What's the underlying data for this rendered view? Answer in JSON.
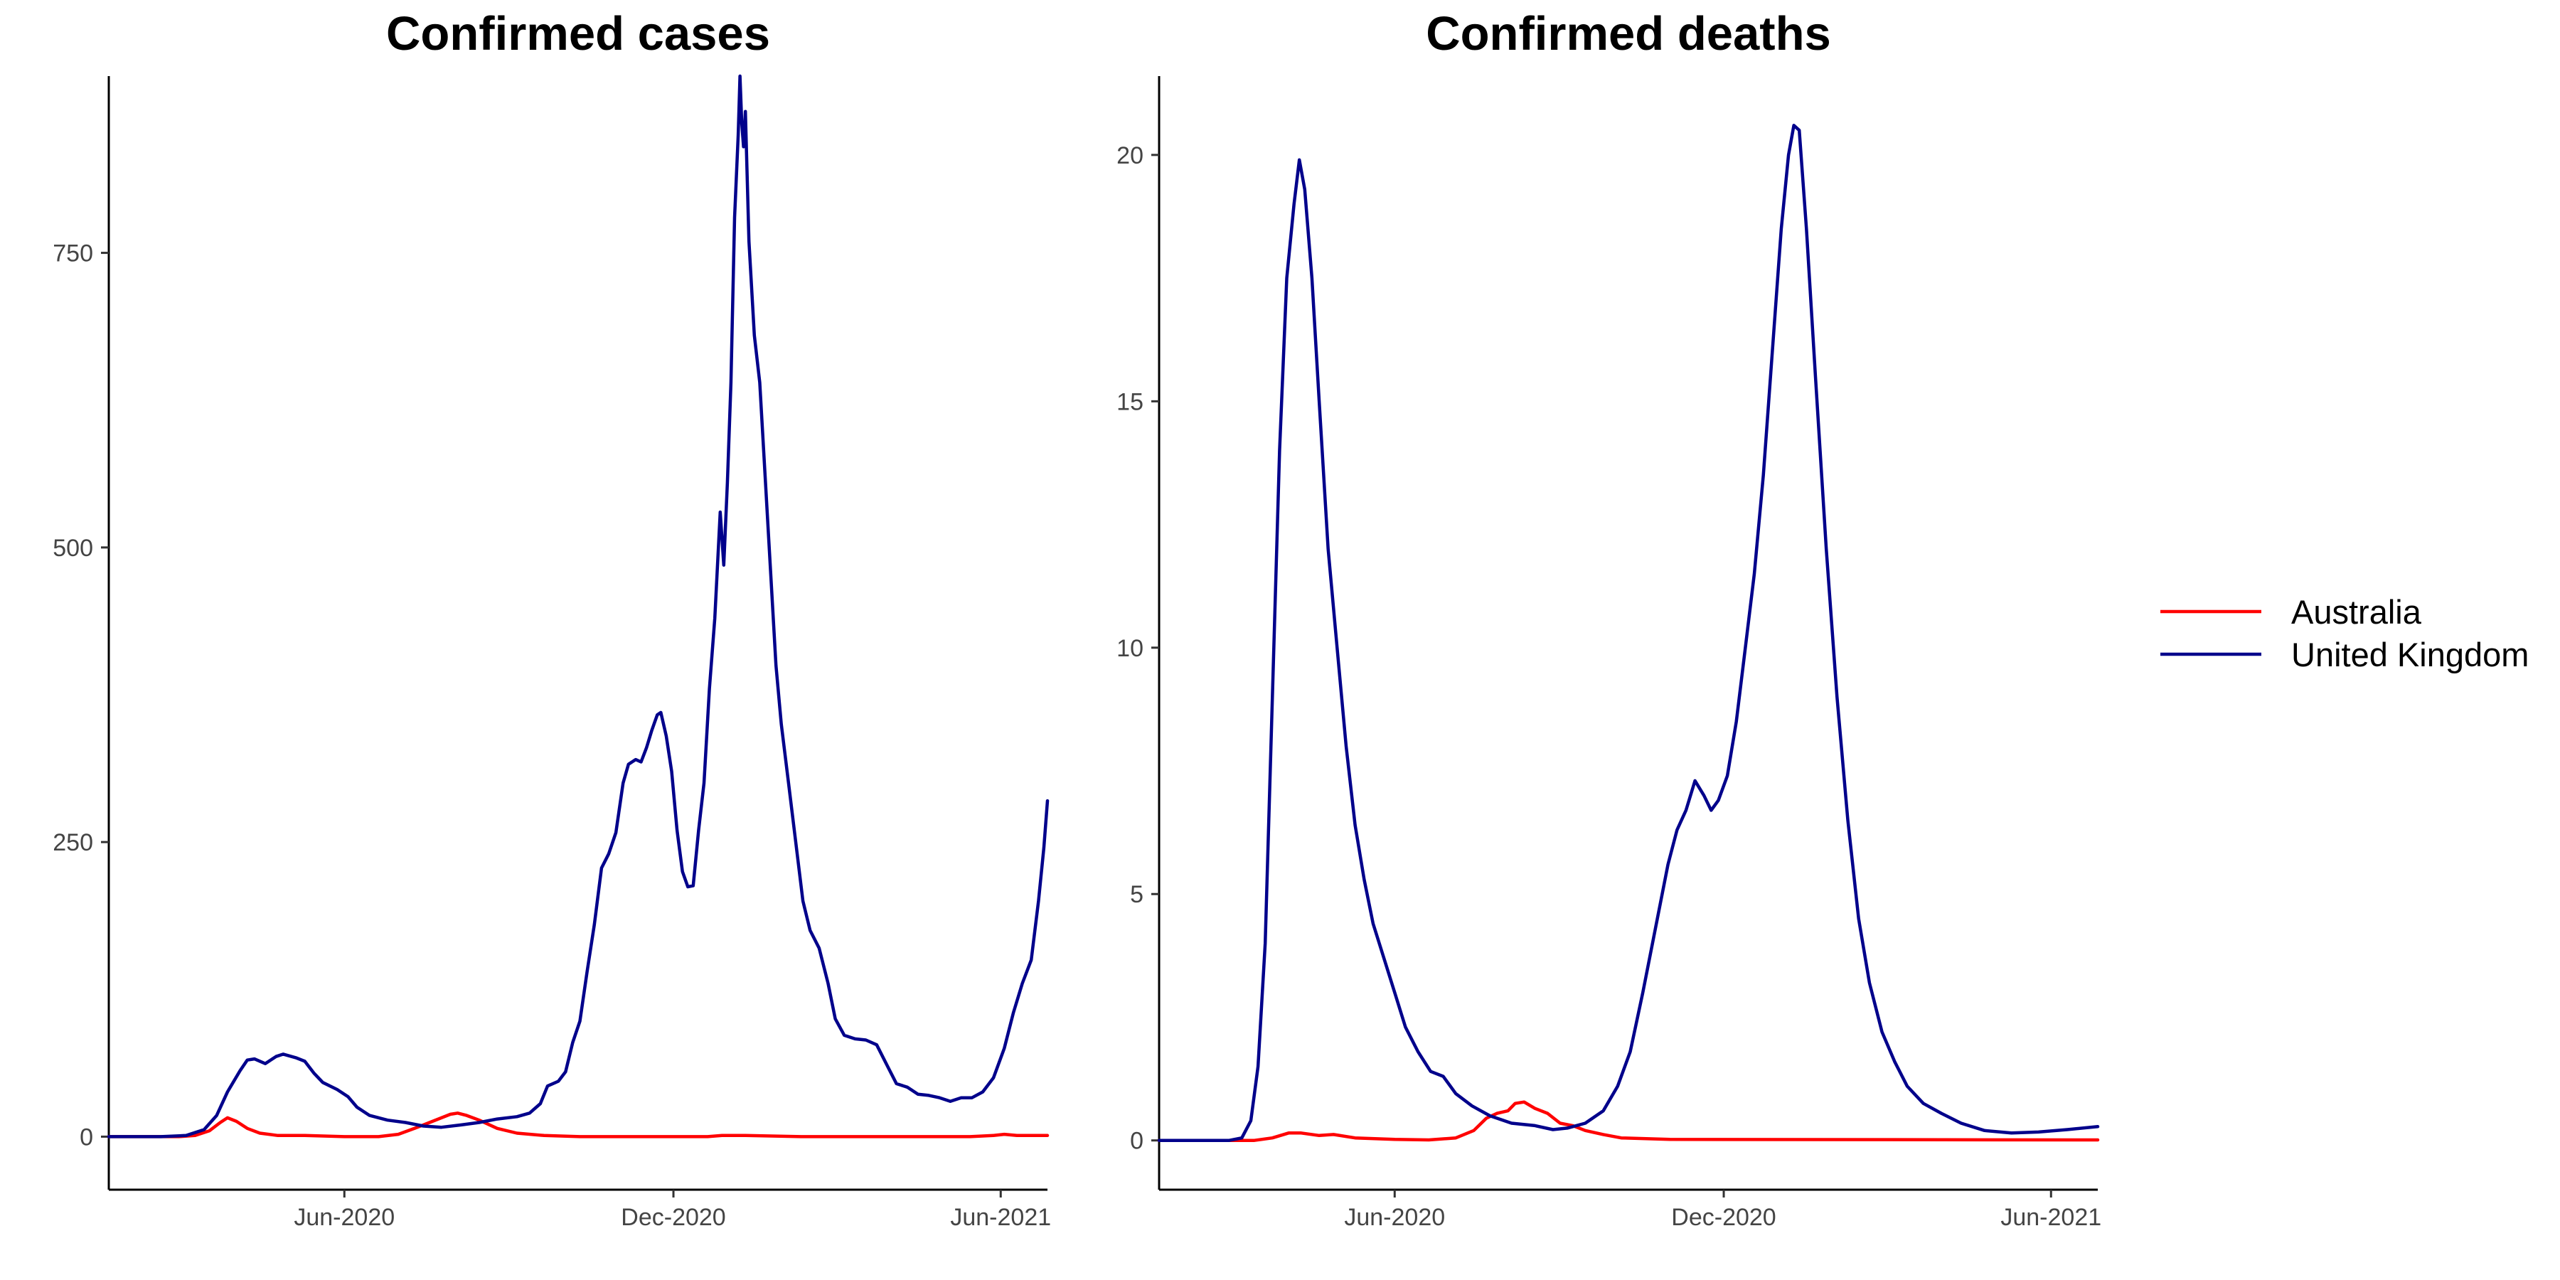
{
  "legend": {
    "placement": "right",
    "entries": [
      {
        "label": "Australia",
        "color": "#ff0000"
      },
      {
        "label": "United Kingdom",
        "color": "#00008b"
      }
    ]
  },
  "chart_data": [
    {
      "type": "line",
      "title": "Confirmed cases",
      "xlabel": "",
      "ylabel": "",
      "x_type": "date",
      "xlim": [
        "2020-01-22",
        "2021-06-27"
      ],
      "ylim": [
        -45,
        900
      ],
      "x_ticks": [
        {
          "date": "2020-06-01",
          "label": "Jun-2020"
        },
        {
          "date": "2020-12-01",
          "label": "Dec-2020"
        },
        {
          "date": "2021-06-01",
          "label": "Jun-2021"
        }
      ],
      "y_ticks": [
        0,
        250,
        500,
        750
      ],
      "grid": false,
      "series": [
        {
          "name": "Australia",
          "color": "#ff0000",
          "points": [
            [
              "2020-01-22",
              0
            ],
            [
              "2020-03-01",
              0
            ],
            [
              "2020-03-10",
              1
            ],
            [
              "2020-03-18",
              5
            ],
            [
              "2020-03-24",
              12
            ],
            [
              "2020-03-28",
              16
            ],
            [
              "2020-04-02",
              13
            ],
            [
              "2020-04-08",
              7
            ],
            [
              "2020-04-15",
              3
            ],
            [
              "2020-04-25",
              1
            ],
            [
              "2020-05-10",
              1
            ],
            [
              "2020-06-01",
              0
            ],
            [
              "2020-06-20",
              0
            ],
            [
              "2020-07-01",
              2
            ],
            [
              "2020-07-10",
              7
            ],
            [
              "2020-07-20",
              13
            ],
            [
              "2020-07-30",
              19
            ],
            [
              "2020-08-03",
              20
            ],
            [
              "2020-08-08",
              18
            ],
            [
              "2020-08-15",
              14
            ],
            [
              "2020-08-25",
              7
            ],
            [
              "2020-09-05",
              3
            ],
            [
              "2020-09-20",
              1
            ],
            [
              "2020-10-10",
              0
            ],
            [
              "2020-12-20",
              0
            ],
            [
              "2020-12-28",
              1
            ],
            [
              "2021-01-10",
              1
            ],
            [
              "2021-02-10",
              0
            ],
            [
              "2021-04-15",
              0
            ],
            [
              "2021-05-15",
              0
            ],
            [
              "2021-05-28",
              1
            ],
            [
              "2021-06-03",
              2
            ],
            [
              "2021-06-10",
              1
            ],
            [
              "2021-06-27",
              1
            ]
          ]
        },
        {
          "name": "United Kingdom",
          "color": "#00008b",
          "points": [
            [
              "2020-01-22",
              0
            ],
            [
              "2020-02-20",
              0
            ],
            [
              "2020-03-05",
              1
            ],
            [
              "2020-03-15",
              6
            ],
            [
              "2020-03-22",
              18
            ],
            [
              "2020-03-28",
              38
            ],
            [
              "2020-04-04",
              56
            ],
            [
              "2020-04-08",
              65
            ],
            [
              "2020-04-12",
              66
            ],
            [
              "2020-04-18",
              62
            ],
            [
              "2020-04-24",
              68
            ],
            [
              "2020-04-28",
              70
            ],
            [
              "2020-05-05",
              67
            ],
            [
              "2020-05-10",
              64
            ],
            [
              "2020-05-15",
              54
            ],
            [
              "2020-05-20",
              46
            ],
            [
              "2020-05-28",
              40
            ],
            [
              "2020-06-03",
              34
            ],
            [
              "2020-06-08",
              25
            ],
            [
              "2020-06-15",
              18
            ],
            [
              "2020-06-25",
              14
            ],
            [
              "2020-07-05",
              12
            ],
            [
              "2020-07-15",
              9
            ],
            [
              "2020-07-25",
              8
            ],
            [
              "2020-08-05",
              10
            ],
            [
              "2020-08-15",
              12
            ],
            [
              "2020-08-25",
              15
            ],
            [
              "2020-09-05",
              17
            ],
            [
              "2020-09-12",
              20
            ],
            [
              "2020-09-18",
              28
            ],
            [
              "2020-09-22",
              43
            ],
            [
              "2020-09-28",
              47
            ],
            [
              "2020-10-02",
              55
            ],
            [
              "2020-10-06",
              80
            ],
            [
              "2020-10-10",
              98
            ],
            [
              "2020-10-14",
              140
            ],
            [
              "2020-10-18",
              180
            ],
            [
              "2020-10-22",
              228
            ],
            [
              "2020-10-26",
              240
            ],
            [
              "2020-10-30",
              258
            ],
            [
              "2020-11-03",
              300
            ],
            [
              "2020-11-06",
              316
            ],
            [
              "2020-11-10",
              320
            ],
            [
              "2020-11-13",
              318
            ],
            [
              "2020-11-16",
              330
            ],
            [
              "2020-11-19",
              345
            ],
            [
              "2020-11-22",
              358
            ],
            [
              "2020-11-24",
              360
            ],
            [
              "2020-11-27",
              340
            ],
            [
              "2020-11-30",
              310
            ],
            [
              "2020-12-03",
              260
            ],
            [
              "2020-12-06",
              225
            ],
            [
              "2020-12-09",
              212
            ],
            [
              "2020-12-12",
              213
            ],
            [
              "2020-12-15",
              260
            ],
            [
              "2020-12-18",
              300
            ],
            [
              "2020-12-21",
              380
            ],
            [
              "2020-12-24",
              440
            ],
            [
              "2020-12-27",
              530
            ],
            [
              "2020-12-29",
              485
            ],
            [
              "2020-12-31",
              555
            ],
            [
              "2021-01-02",
              640
            ],
            [
              "2021-01-04",
              780
            ],
            [
              "2021-01-06",
              850
            ],
            [
              "2021-01-07",
              900
            ],
            [
              "2021-01-08",
              860
            ],
            [
              "2021-01-09",
              840
            ],
            [
              "2021-01-10",
              870
            ],
            [
              "2021-01-12",
              760
            ],
            [
              "2021-01-15",
              680
            ],
            [
              "2021-01-18",
              640
            ],
            [
              "2021-01-21",
              560
            ],
            [
              "2021-01-24",
              480
            ],
            [
              "2021-01-27",
              400
            ],
            [
              "2021-01-30",
              350
            ],
            [
              "2021-02-03",
              300
            ],
            [
              "2021-02-07",
              250
            ],
            [
              "2021-02-11",
              200
            ],
            [
              "2021-02-15",
              175
            ],
            [
              "2021-02-20",
              160
            ],
            [
              "2021-02-25",
              130
            ],
            [
              "2021-03-01",
              100
            ],
            [
              "2021-03-06",
              86
            ],
            [
              "2021-03-12",
              83
            ],
            [
              "2021-03-18",
              82
            ],
            [
              "2021-03-24",
              78
            ],
            [
              "2021-03-30",
              60
            ],
            [
              "2021-04-04",
              45
            ],
            [
              "2021-04-10",
              42
            ],
            [
              "2021-04-16",
              36
            ],
            [
              "2021-04-22",
              35
            ],
            [
              "2021-04-28",
              33
            ],
            [
              "2021-05-04",
              30
            ],
            [
              "2021-05-10",
              33
            ],
            [
              "2021-05-16",
              33
            ],
            [
              "2021-05-22",
              38
            ],
            [
              "2021-05-28",
              50
            ],
            [
              "2021-06-03",
              75
            ],
            [
              "2021-06-08",
              105
            ],
            [
              "2021-06-13",
              130
            ],
            [
              "2021-06-18",
              150
            ],
            [
              "2021-06-22",
              200
            ],
            [
              "2021-06-25",
              245
            ],
            [
              "2021-06-27",
              285
            ]
          ]
        }
      ]
    },
    {
      "type": "line",
      "title": "Confirmed deaths",
      "xlabel": "",
      "ylabel": "",
      "x_type": "date",
      "xlim": [
        "2020-01-22",
        "2021-06-27"
      ],
      "ylim": [
        -1,
        21.6
      ],
      "x_ticks": [
        {
          "date": "2020-06-01",
          "label": "Jun-2020"
        },
        {
          "date": "2020-12-01",
          "label": "Dec-2020"
        },
        {
          "date": "2021-06-01",
          "label": "Jun-2021"
        }
      ],
      "y_ticks": [
        0,
        5,
        10,
        15,
        20
      ],
      "grid": false,
      "series": [
        {
          "name": "Australia",
          "color": "#ff0000",
          "points": [
            [
              "2020-01-22",
              0
            ],
            [
              "2020-03-15",
              0
            ],
            [
              "2020-03-25",
              0.05
            ],
            [
              "2020-04-03",
              0.15
            ],
            [
              "2020-04-10",
              0.15
            ],
            [
              "2020-04-20",
              0.1
            ],
            [
              "2020-04-28",
              0.12
            ],
            [
              "2020-05-10",
              0.05
            ],
            [
              "2020-06-01",
              0.02
            ],
            [
              "2020-06-20",
              0.01
            ],
            [
              "2020-07-05",
              0.05
            ],
            [
              "2020-07-15",
              0.2
            ],
            [
              "2020-07-22",
              0.45
            ],
            [
              "2020-07-28",
              0.55
            ],
            [
              "2020-08-03",
              0.6
            ],
            [
              "2020-08-07",
              0.75
            ],
            [
              "2020-08-12",
              0.78
            ],
            [
              "2020-08-18",
              0.65
            ],
            [
              "2020-08-25",
              0.55
            ],
            [
              "2020-09-01",
              0.35
            ],
            [
              "2020-09-08",
              0.3
            ],
            [
              "2020-09-15",
              0.2
            ],
            [
              "2020-09-25",
              0.12
            ],
            [
              "2020-10-05",
              0.05
            ],
            [
              "2020-11-01",
              0.02
            ],
            [
              "2021-06-27",
              0.01
            ]
          ]
        },
        {
          "name": "United Kingdom",
          "color": "#00008b",
          "points": [
            [
              "2020-01-22",
              0
            ],
            [
              "2020-03-01",
              0
            ],
            [
              "2020-03-08",
              0.05
            ],
            [
              "2020-03-13",
              0.4
            ],
            [
              "2020-03-17",
              1.5
            ],
            [
              "2020-03-21",
              4
            ],
            [
              "2020-03-25",
              9
            ],
            [
              "2020-03-29",
              14
            ],
            [
              "2020-04-02",
              17.5
            ],
            [
              "2020-04-06",
              19
            ],
            [
              "2020-04-09",
              19.9
            ],
            [
              "2020-04-12",
              19.3
            ],
            [
              "2020-04-16",
              17.5
            ],
            [
              "2020-04-20",
              15
            ],
            [
              "2020-04-25",
              12
            ],
            [
              "2020-04-30",
              10
            ],
            [
              "2020-05-05",
              8
            ],
            [
              "2020-05-10",
              6.4
            ],
            [
              "2020-05-15",
              5.3
            ],
            [
              "2020-05-20",
              4.4
            ],
            [
              "2020-05-26",
              3.7
            ],
            [
              "2020-06-01",
              3
            ],
            [
              "2020-06-07",
              2.3
            ],
            [
              "2020-06-14",
              1.8
            ],
            [
              "2020-06-21",
              1.4
            ],
            [
              "2020-06-28",
              1.3
            ],
            [
              "2020-07-05",
              0.95
            ],
            [
              "2020-07-14",
              0.7
            ],
            [
              "2020-07-24",
              0.5
            ],
            [
              "2020-08-05",
              0.35
            ],
            [
              "2020-08-18",
              0.3
            ],
            [
              "2020-08-28",
              0.22
            ],
            [
              "2020-09-05",
              0.25
            ],
            [
              "2020-09-15",
              0.35
            ],
            [
              "2020-09-25",
              0.6
            ],
            [
              "2020-10-03",
              1.1
            ],
            [
              "2020-10-10",
              1.8
            ],
            [
              "2020-10-17",
              3
            ],
            [
              "2020-10-24",
              4.3
            ],
            [
              "2020-10-31",
              5.6
            ],
            [
              "2020-11-05",
              6.3
            ],
            [
              "2020-11-10",
              6.7
            ],
            [
              "2020-11-15",
              7.3
            ],
            [
              "2020-11-20",
              7
            ],
            [
              "2020-11-24",
              6.7
            ],
            [
              "2020-11-28",
              6.9
            ],
            [
              "2020-12-03",
              7.4
            ],
            [
              "2020-12-08",
              8.5
            ],
            [
              "2020-12-13",
              10
            ],
            [
              "2020-12-18",
              11.5
            ],
            [
              "2020-12-23",
              13.5
            ],
            [
              "2020-12-28",
              16
            ],
            [
              "2021-01-02",
              18.5
            ],
            [
              "2021-01-06",
              20
            ],
            [
              "2021-01-09",
              20.6
            ],
            [
              "2021-01-12",
              20.5
            ],
            [
              "2021-01-16",
              18.5
            ],
            [
              "2021-01-21",
              15.5
            ],
            [
              "2021-01-27",
              12
            ],
            [
              "2021-02-02",
              9
            ],
            [
              "2021-02-08",
              6.5
            ],
            [
              "2021-02-14",
              4.5
            ],
            [
              "2021-02-20",
              3.2
            ],
            [
              "2021-02-27",
              2.2
            ],
            [
              "2021-03-06",
              1.6
            ],
            [
              "2021-03-13",
              1.1
            ],
            [
              "2021-03-22",
              0.75
            ],
            [
              "2021-04-01",
              0.55
            ],
            [
              "2021-04-12",
              0.35
            ],
            [
              "2021-04-25",
              0.2
            ],
            [
              "2021-05-10",
              0.15
            ],
            [
              "2021-05-25",
              0.17
            ],
            [
              "2021-06-10",
              0.22
            ],
            [
              "2021-06-27",
              0.28
            ]
          ]
        }
      ]
    }
  ]
}
